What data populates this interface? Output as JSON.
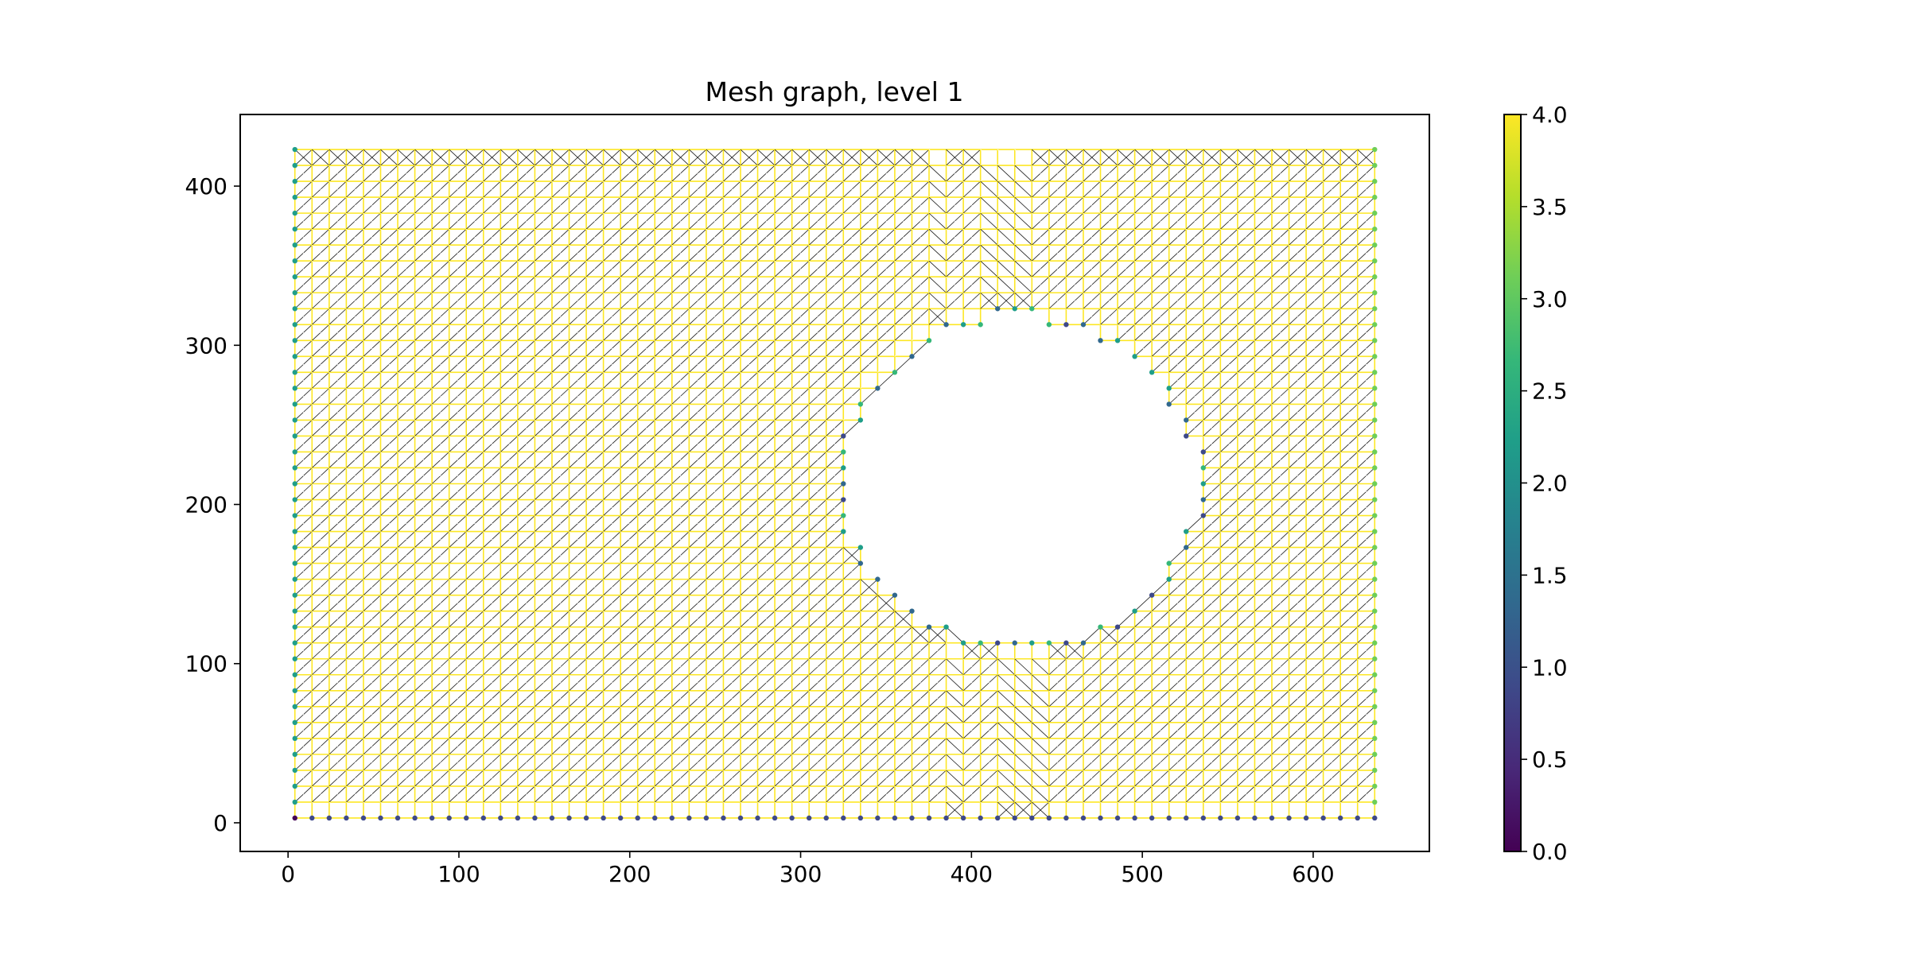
{
  "chart_data": {
    "type": "scatter",
    "title": "Mesh graph, level 1",
    "xlabel": "",
    "ylabel": "",
    "xlim": [
      -28,
      668
    ],
    "ylim": [
      -18,
      445
    ],
    "xticks": [
      0,
      100,
      200,
      300,
      400,
      500,
      600
    ],
    "yticks": [
      0,
      100,
      200,
      300,
      400
    ],
    "grid": false,
    "mesh": {
      "x_range": [
        4,
        636
      ],
      "y_range": [
        3,
        423
      ],
      "nx": 64,
      "ny": 43,
      "hole_center": [
        428,
        214
      ],
      "hole_radius": 100,
      "interior_degree": 4,
      "bottom_edge_degree": 1.0,
      "left_edge_degree": 2.0,
      "right_edge_degree": 3.0,
      "corner_degree": 0.0,
      "edge_colors": [
        "#fde725",
        "#ffffff",
        "#1a1a1a"
      ]
    },
    "colorbar": {
      "label": "",
      "min": 0.0,
      "max": 4.0,
      "ticks": [
        "0.0",
        "0.5",
        "1.0",
        "1.5",
        "2.0",
        "2.5",
        "3.0",
        "3.5",
        "4.0"
      ],
      "colormap": [
        "#440154",
        "#482878",
        "#3e4989",
        "#31688e",
        "#26828e",
        "#1f9e89",
        "#35b779",
        "#6ece58",
        "#b5de2b",
        "#fde725"
      ]
    }
  }
}
